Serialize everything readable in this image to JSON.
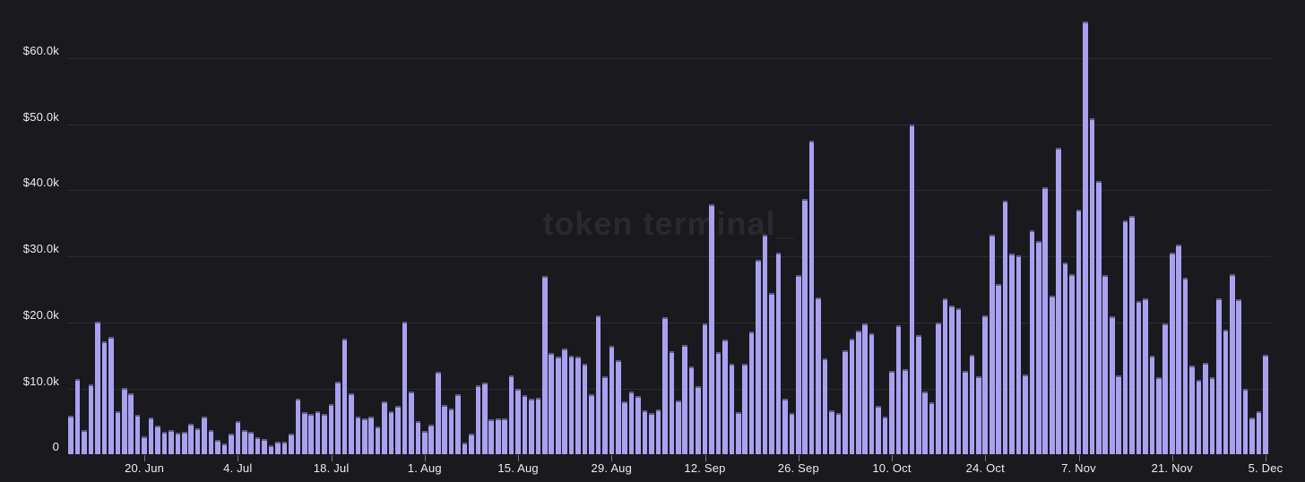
{
  "watermark": "token terminal_",
  "colors": {
    "background": "#1a1a1e",
    "bar": "#a9a1f0",
    "bar_top_cap": "#45406a",
    "gridline": "#2b2b30",
    "axis_text": "#ececee",
    "tick_mark": "#75757a",
    "watermark_text": "#29292e"
  },
  "chart_data": {
    "type": "bar",
    "title": "",
    "xlabel": "",
    "ylabel": "",
    "watermark": "token terminal_",
    "unit": "USD",
    "ylim_k": [
      0,
      68.8
    ],
    "grid": "horizontal",
    "legend": "none",
    "y_axis": {
      "tick_labels": [
        "$60.0k",
        "$50.0k",
        "$40.0k",
        "$30.0k",
        "$20.0k",
        "$10.0k",
        "0"
      ],
      "tick_values_k": [
        60,
        50,
        40,
        30,
        20,
        10,
        0
      ]
    },
    "x_axis": {
      "tick_labels": [
        "20. Jun",
        "4. Jul",
        "18. Jul",
        "1. Aug",
        "15. Aug",
        "29. Aug",
        "12. Sep",
        "26. Sep",
        "10. Oct",
        "24. Oct",
        "7. Nov",
        "21. Nov",
        "5. Dec"
      ],
      "tick_bar_indices": [
        11,
        25,
        39,
        53,
        67,
        81,
        95,
        109,
        123,
        137,
        151,
        165,
        179
      ]
    },
    "values_k_usd": [
      5.9,
      11.5,
      3.7,
      10.6,
      20.1,
      17.1,
      17.8,
      6.5,
      10.1,
      9.2,
      6.0,
      2.8,
      5.6,
      4.4,
      3.5,
      3.7,
      3.3,
      3.5,
      4.7,
      4.0,
      5.8,
      3.7,
      2.2,
      1.7,
      3.1,
      5.0,
      3.7,
      3.4,
      2.6,
      2.4,
      1.4,
      1.9,
      2.0,
      3.2,
      8.5,
      6.4,
      6.1,
      6.6,
      6.1,
      7.6,
      11.0,
      17.6,
      9.3,
      5.7,
      5.5,
      5.8,
      4.2,
      8.1,
      6.6,
      7.4,
      20.1,
      9.6,
      5.0,
      3.6,
      4.5,
      12.5,
      7.5,
      7.0,
      9.1,
      1.8,
      3.2,
      10.5,
      10.9,
      5.3,
      5.5,
      5.5,
      12.0,
      10.0,
      9.0,
      8.4,
      8.6,
      27.0,
      15.4,
      14.8,
      16.0,
      15.0,
      14.8,
      13.7,
      9.1,
      21.0,
      11.8,
      16.5,
      14.3,
      8.1,
      9.5,
      8.9,
      6.7,
      6.3,
      6.8,
      20.8,
      15.7,
      8.2,
      16.6,
      13.3,
      10.4,
      19.9,
      37.8,
      15.5,
      17.4,
      13.8,
      6.4,
      13.8,
      18.6,
      29.5,
      33.3,
      24.5,
      30.6,
      8.4,
      6.3,
      27.2,
      38.7,
      47.5,
      23.8,
      14.5,
      6.7,
      6.3,
      15.8,
      17.5,
      18.8,
      19.9,
      18.3,
      7.4,
      5.8,
      12.7,
      19.5,
      12.9,
      49.9,
      18.1,
      9.5,
      7.9,
      20.0,
      23.7,
      22.5,
      22.2,
      12.6,
      15.1,
      11.9,
      21.0,
      33.3,
      25.8,
      38.4,
      30.4,
      30.2,
      12.1,
      33.9,
      32.3,
      40.4,
      24.0,
      46.4,
      29.0,
      27.3,
      37.0,
      65.5,
      50.9,
      41.4,
      27.1,
      20.9,
      12.0,
      35.4,
      36.1,
      23.2,
      23.6,
      15.0,
      11.7,
      19.9,
      30.6,
      31.8,
      26.7,
      13.4,
      11.3,
      13.9,
      11.7,
      23.6,
      18.9,
      27.3,
      23.5,
      10.0,
      5.6,
      6.5,
      15.1
    ]
  }
}
